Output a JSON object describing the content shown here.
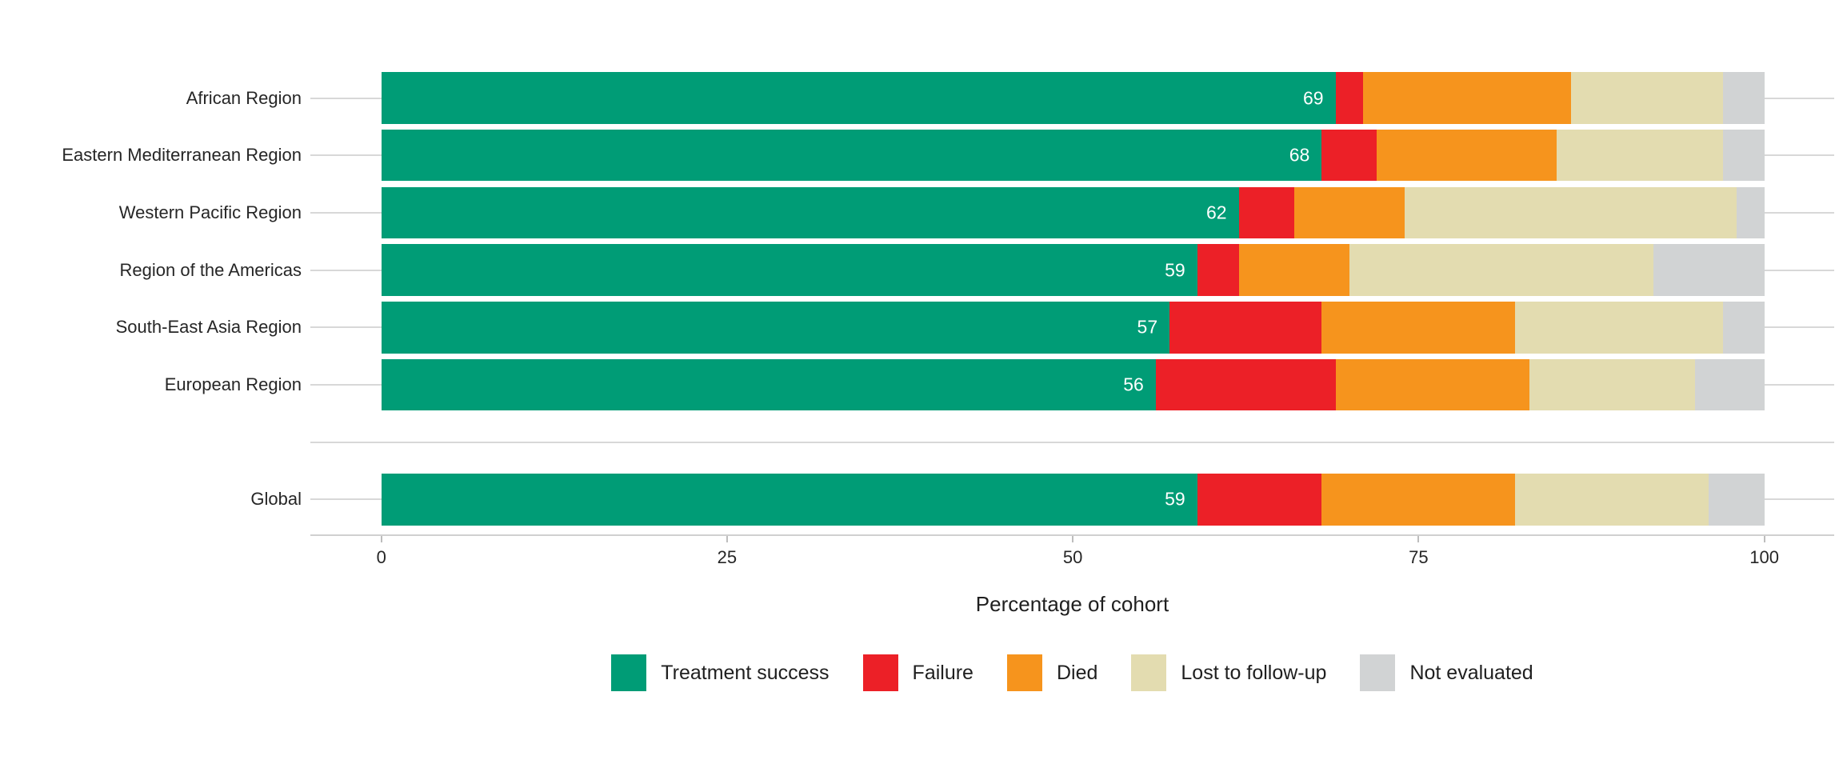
{
  "chart_data": {
    "type": "bar",
    "orientation": "horizontal",
    "stacked": true,
    "title": "",
    "xlabel": "Percentage of cohort",
    "ylabel": "",
    "xlim": [
      0,
      100
    ],
    "x_ticks": [
      "0",
      "25",
      "50",
      "75",
      "100"
    ],
    "grid": "per-category leader lines only, light gray",
    "legend_position": "bottom",
    "categories": [
      "African Region",
      "Eastern Mediterranean Region",
      "Western Pacific Region",
      "Region of the Americas",
      "South-East Asia Region",
      "European Region",
      "Global"
    ],
    "separator_after": "European Region",
    "series": [
      {
        "name": "Treatment success",
        "color": "#009C76",
        "values": [
          69,
          68,
          62,
          59,
          57,
          56,
          59
        ],
        "labeled": true,
        "label_color": "#FFFFFF"
      },
      {
        "name": "Failure",
        "color": "#EC2027",
        "values": [
          2,
          4,
          4,
          3,
          11,
          13,
          9
        ]
      },
      {
        "name": "Died",
        "color": "#F6941D",
        "values": [
          15,
          13,
          8,
          8,
          14,
          14,
          14
        ]
      },
      {
        "name": "Lost to follow-up",
        "color": "#E3DCB0",
        "values": [
          11,
          12,
          24,
          22,
          15,
          12,
          14
        ]
      },
      {
        "name": "Not evaluated",
        "color": "#D1D3D4",
        "values": [
          3,
          3,
          2,
          8,
          3,
          5,
          4
        ]
      }
    ]
  },
  "ui_colors": {
    "axis_line": "#D0D0D0",
    "leader_line": "#D8D8D8",
    "tick_mark": "#BDBDBD",
    "text": "#262626",
    "bar_value_text": "#FFFFFF",
    "background": "#FFFFFF"
  }
}
